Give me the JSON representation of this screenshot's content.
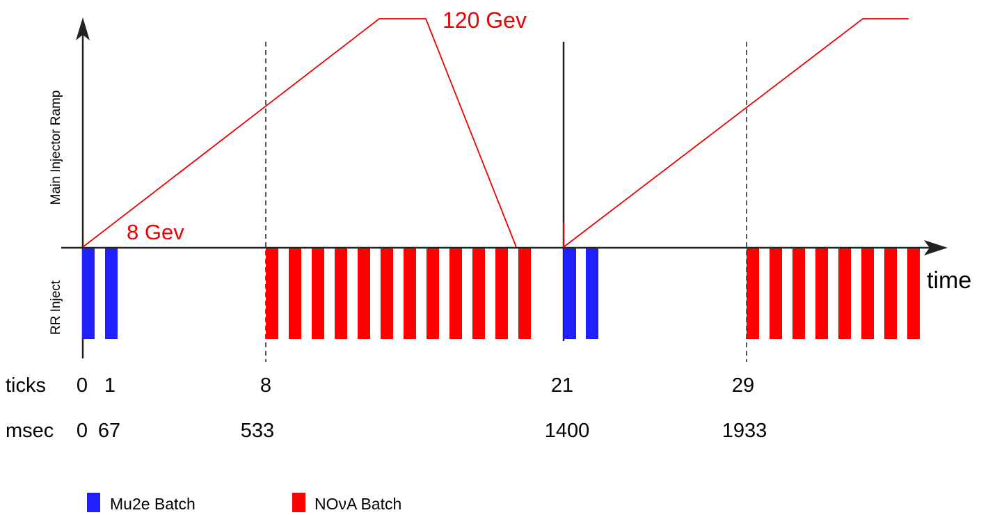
{
  "axes": {
    "y_upper_label": "Main Injector Ramp",
    "y_lower_label": "RR Inject",
    "x_label": "time"
  },
  "ramp_labels": {
    "low": "8 Gev",
    "high": "120 Gev"
  },
  "rows": {
    "ticks_label": "ticks",
    "msec_label": "msec"
  },
  "ticks": [
    {
      "tick": "0",
      "msec": "0"
    },
    {
      "tick": "1",
      "msec": "67"
    },
    {
      "tick": "8",
      "msec": "533"
    },
    {
      "tick": "21",
      "msec": "1400"
    },
    {
      "tick": "29",
      "msec": "1933"
    }
  ],
  "legend": [
    {
      "label": "Mu2e Batch",
      "color": "#1f1fff"
    },
    {
      "label": "NOνA Batch",
      "color": "#ff0000"
    }
  ],
  "colors": {
    "mu2e": "#1f1fff",
    "nova": "#ff0000",
    "ramp": "#ee0000",
    "axis": "#222222"
  },
  "batches": {
    "mu2e_group_1_count": 2,
    "nova_group_1_count": 12,
    "mu2e_group_2_count": 2,
    "nova_group_2_count": 8
  }
}
